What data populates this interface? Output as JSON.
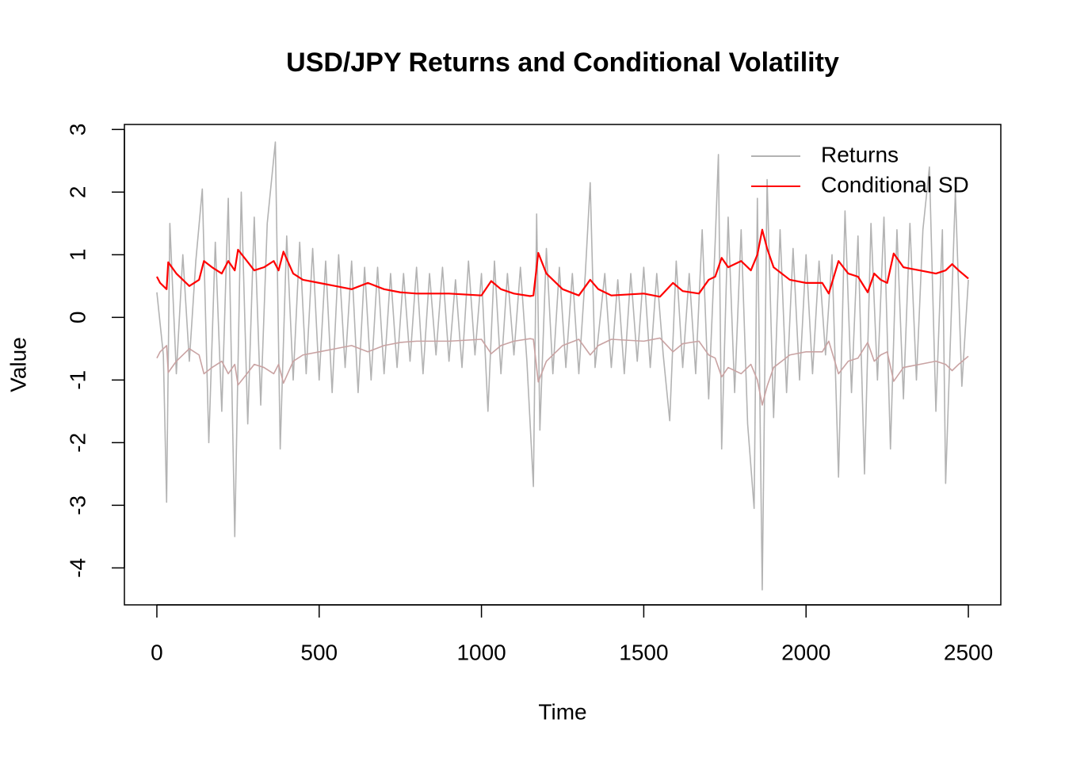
{
  "chart_data": {
    "type": "line",
    "title": "USD/JPY Returns and Conditional Volatility",
    "x_label": "Time",
    "y_label": "Value",
    "xlim": [
      -100,
      2600
    ],
    "ylim": [
      -4.59,
      3.08
    ],
    "xticks": [
      0,
      500,
      1000,
      1500,
      2000,
      2500
    ],
    "yticks": [
      -4,
      -3,
      -2,
      -1,
      0,
      1,
      2,
      3
    ],
    "legend_position": "topright",
    "series": [
      {
        "name": "Returns",
        "color": "#b3b3b3",
        "x": [
          0,
          20,
          30,
          40,
          60,
          80,
          100,
          120,
          140,
          160,
          180,
          200,
          220,
          240,
          260,
          280,
          300,
          320,
          340,
          365,
          380,
          400,
          420,
          440,
          460,
          480,
          500,
          520,
          540,
          560,
          580,
          600,
          620,
          640,
          660,
          680,
          700,
          720,
          740,
          760,
          780,
          800,
          820,
          840,
          860,
          880,
          900,
          920,
          940,
          960,
          980,
          1000,
          1020,
          1040,
          1060,
          1080,
          1100,
          1120,
          1140,
          1160,
          1170,
          1180,
          1200,
          1220,
          1240,
          1260,
          1280,
          1300,
          1320,
          1335,
          1350,
          1380,
          1400,
          1420,
          1440,
          1460,
          1480,
          1500,
          1520,
          1540,
          1560,
          1580,
          1600,
          1620,
          1640,
          1660,
          1680,
          1700,
          1720,
          1730,
          1740,
          1760,
          1780,
          1800,
          1820,
          1840,
          1850,
          1865,
          1880,
          1900,
          1920,
          1940,
          1960,
          1980,
          2000,
          2020,
          2040,
          2060,
          2080,
          2100,
          2120,
          2140,
          2160,
          2180,
          2200,
          2220,
          2240,
          2260,
          2280,
          2300,
          2320,
          2340,
          2360,
          2380,
          2400,
          2420,
          2430,
          2460,
          2480,
          2500
        ],
        "values": [
          0.4,
          -0.6,
          -2.95,
          1.5,
          -0.9,
          1.0,
          -0.7,
          0.9,
          2.05,
          -2.0,
          1.2,
          -1.5,
          1.9,
          -3.5,
          2.0,
          -1.7,
          1.6,
          -1.4,
          1.5,
          2.8,
          -2.1,
          1.3,
          -1.0,
          1.2,
          -0.9,
          1.1,
          -1.0,
          0.9,
          -1.2,
          1.0,
          -0.8,
          0.9,
          -1.2,
          0.8,
          -1.0,
          0.8,
          -0.9,
          0.7,
          -0.8,
          0.7,
          -0.7,
          0.8,
          -0.9,
          0.7,
          -0.6,
          0.8,
          -0.7,
          0.6,
          -0.8,
          0.9,
          -0.6,
          0.7,
          -1.5,
          0.9,
          -0.9,
          0.7,
          -0.6,
          0.8,
          -0.7,
          -2.7,
          1.65,
          -1.8,
          1.1,
          -0.9,
          0.8,
          -0.8,
          0.7,
          -0.9,
          0.7,
          2.15,
          -0.8,
          0.7,
          -0.8,
          0.6,
          -0.9,
          0.7,
          -0.7,
          0.8,
          -0.8,
          0.7,
          -0.6,
          -1.65,
          0.9,
          -0.8,
          0.7,
          -0.9,
          1.4,
          -1.3,
          1.2,
          2.6,
          -2.1,
          1.6,
          -1.2,
          1.4,
          -1.7,
          -3.05,
          1.9,
          -4.35,
          2.2,
          -1.6,
          1.4,
          -1.2,
          1.1,
          -1.0,
          1.0,
          -0.9,
          0.9,
          -0.6,
          1.0,
          -2.55,
          1.7,
          -1.2,
          1.3,
          -2.5,
          1.5,
          -1.0,
          1.6,
          -2.1,
          1.4,
          -1.3,
          1.5,
          -1.0,
          1.4,
          2.4,
          -1.5,
          1.4,
          -2.65,
          2.0,
          -1.1,
          0.6
        ]
      },
      {
        "name": "Conditional SD",
        "color": "#ff0000",
        "x": [
          0,
          10,
          30,
          35,
          60,
          100,
          130,
          145,
          170,
          200,
          220,
          240,
          250,
          270,
          300,
          330,
          360,
          375,
          390,
          420,
          450,
          500,
          550,
          600,
          650,
          700,
          750,
          800,
          900,
          1000,
          1030,
          1060,
          1100,
          1150,
          1160,
          1175,
          1200,
          1250,
          1300,
          1335,
          1360,
          1400,
          1500,
          1550,
          1590,
          1620,
          1670,
          1700,
          1720,
          1740,
          1760,
          1800,
          1830,
          1850,
          1865,
          1880,
          1900,
          1950,
          2000,
          2050,
          2070,
          2100,
          2130,
          2160,
          2190,
          2210,
          2230,
          2250,
          2270,
          2300,
          2350,
          2400,
          2430,
          2450,
          2470,
          2500
        ],
        "values": [
          0.65,
          0.55,
          0.45,
          0.88,
          0.7,
          0.5,
          0.6,
          0.9,
          0.8,
          0.7,
          0.9,
          0.75,
          1.08,
          0.95,
          0.75,
          0.8,
          0.9,
          0.75,
          1.05,
          0.7,
          0.6,
          0.55,
          0.5,
          0.45,
          0.55,
          0.45,
          0.4,
          0.38,
          0.38,
          0.35,
          0.58,
          0.45,
          0.38,
          0.34,
          0.35,
          1.03,
          0.7,
          0.45,
          0.35,
          0.6,
          0.45,
          0.35,
          0.38,
          0.33,
          0.55,
          0.42,
          0.38,
          0.6,
          0.65,
          0.95,
          0.8,
          0.9,
          0.75,
          1.0,
          1.4,
          1.1,
          0.8,
          0.6,
          0.55,
          0.55,
          0.38,
          0.9,
          0.7,
          0.65,
          0.4,
          0.7,
          0.6,
          0.55,
          1.02,
          0.8,
          0.75,
          0.7,
          0.75,
          0.85,
          0.75,
          0.62
        ]
      },
      {
        "color": "#c9a3a3",
        "x": [
          0,
          10,
          30,
          35,
          60,
          100,
          130,
          145,
          170,
          200,
          220,
          240,
          250,
          270,
          300,
          330,
          360,
          375,
          390,
          420,
          450,
          500,
          550,
          600,
          650,
          700,
          750,
          800,
          900,
          1000,
          1030,
          1060,
          1100,
          1150,
          1160,
          1175,
          1200,
          1250,
          1300,
          1335,
          1360,
          1400,
          1500,
          1550,
          1590,
          1620,
          1670,
          1700,
          1720,
          1740,
          1760,
          1800,
          1830,
          1850,
          1865,
          1880,
          1900,
          1950,
          2000,
          2050,
          2070,
          2100,
          2130,
          2160,
          2190,
          2210,
          2230,
          2250,
          2270,
          2300,
          2350,
          2400,
          2430,
          2450,
          2470,
          2500
        ],
        "values": [
          -0.65,
          -0.55,
          -0.45,
          -0.88,
          -0.7,
          -0.5,
          -0.6,
          -0.9,
          -0.8,
          -0.7,
          -0.9,
          -0.75,
          -1.08,
          -0.95,
          -0.75,
          -0.8,
          -0.9,
          -0.75,
          -1.05,
          -0.7,
          -0.6,
          -0.55,
          -0.5,
          -0.45,
          -0.55,
          -0.45,
          -0.4,
          -0.38,
          -0.38,
          -0.35,
          -0.58,
          -0.45,
          -0.38,
          -0.34,
          -0.35,
          -1.03,
          -0.7,
          -0.45,
          -0.35,
          -0.6,
          -0.45,
          -0.35,
          -0.38,
          -0.33,
          -0.55,
          -0.42,
          -0.38,
          -0.6,
          -0.65,
          -0.95,
          -0.8,
          -0.9,
          -0.75,
          -1.0,
          -1.4,
          -1.1,
          -0.8,
          -0.6,
          -0.55,
          -0.55,
          -0.38,
          -0.9,
          -0.7,
          -0.65,
          -0.4,
          -0.7,
          -0.6,
          -0.55,
          -1.02,
          -0.8,
          -0.75,
          -0.7,
          -0.75,
          -0.85,
          -0.75,
          -0.62
        ]
      }
    ]
  }
}
